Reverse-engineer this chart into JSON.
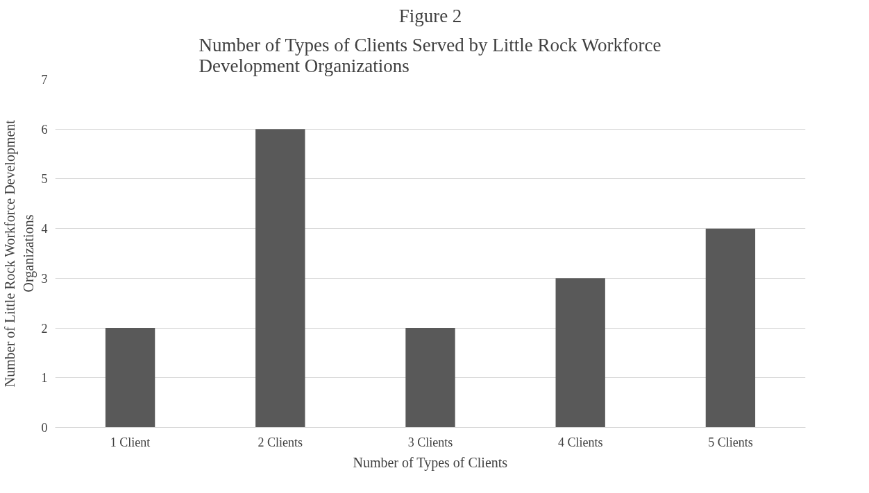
{
  "chart_data": {
    "type": "bar",
    "title": "Figure 2",
    "subtitle": "Number of Types of Clients Served by Little Rock Workforce Development Organizations",
    "xlabel": "Number of Types of Clients",
    "ylabel": "Number of Little Rock Workforce Development Organizations",
    "categories": [
      "1 Client",
      "2 Clients",
      "3 Clients",
      "4 Clients",
      "5 Clients"
    ],
    "values": [
      2,
      6,
      2,
      3,
      4
    ],
    "color": "#595959",
    "ylim": [
      0,
      7
    ],
    "yticks": [
      0,
      1,
      2,
      3,
      4,
      5,
      6,
      7
    ],
    "grid": "y"
  }
}
